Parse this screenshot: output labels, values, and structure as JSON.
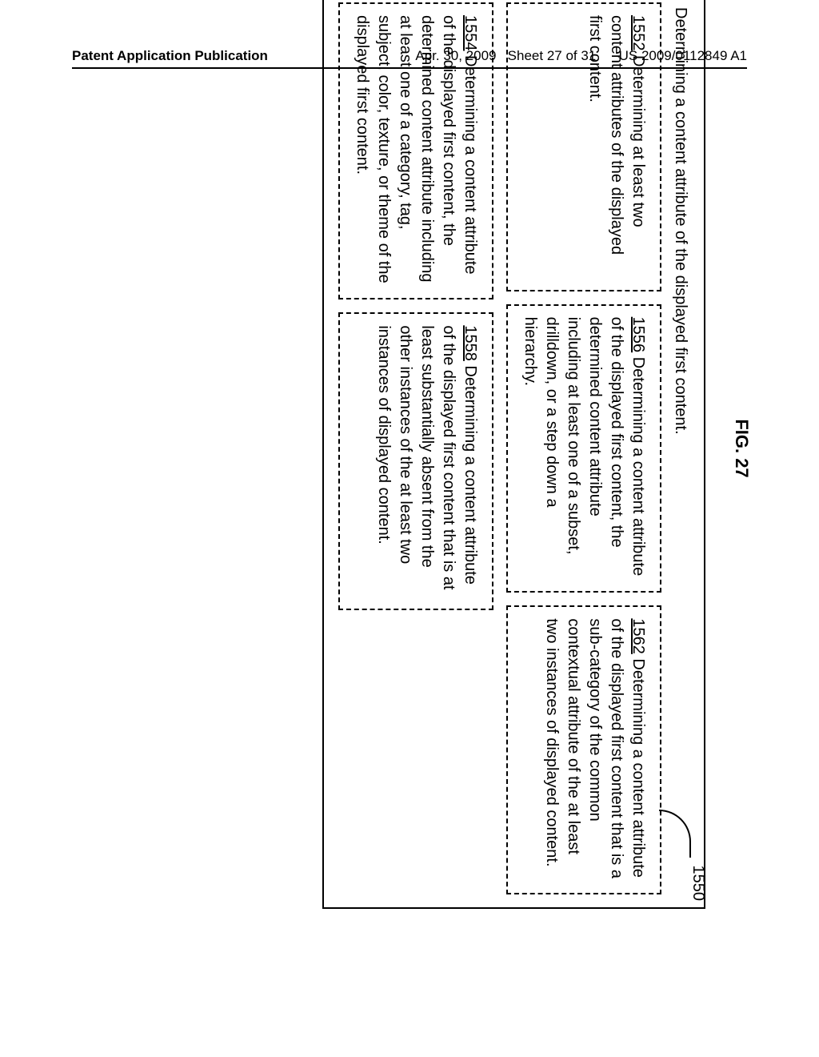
{
  "header": {
    "left": "Patent Application Publication",
    "date": "Apr. 30, 2009",
    "sheet": "Sheet 27 of 31",
    "pubnum": "US 2009/0112849 A1"
  },
  "figure": {
    "label": "FIG. 27",
    "ref": "1550",
    "outer_title": "Determining a content attribute of the displayed first content.",
    "boxes": {
      "b1552": {
        "ref": "1552",
        "text": "  Determining at least two content attributes of the displayed first content."
      },
      "b1556": {
        "ref": "1556",
        "text": "  Determining a content attribute of the displayed first content, the determined content attribute including at least one of a subset, drilldown, or a step down a hierarchy."
      },
      "b1562": {
        "ref": "1562",
        "text": "  Determining a content attribute of the displayed first content that is a sub-category of the common contextual attribute of the at least two instances of displayed content."
      },
      "b1554": {
        "ref": "1554",
        "text": "  Determining a content attribute of the displayed first content, the determined content attribute including at least one of a category, tag, subject, color, texture, or theme of the displayed first content."
      },
      "b1558": {
        "ref": "1558",
        "text": "  Determining a content attribute of the displayed first content that is at least substantially absent from the other instances of the at least two instances of displayed content."
      }
    }
  },
  "style": {
    "bg": "#ffffff",
    "text": "#000000",
    "border": "#000000"
  }
}
